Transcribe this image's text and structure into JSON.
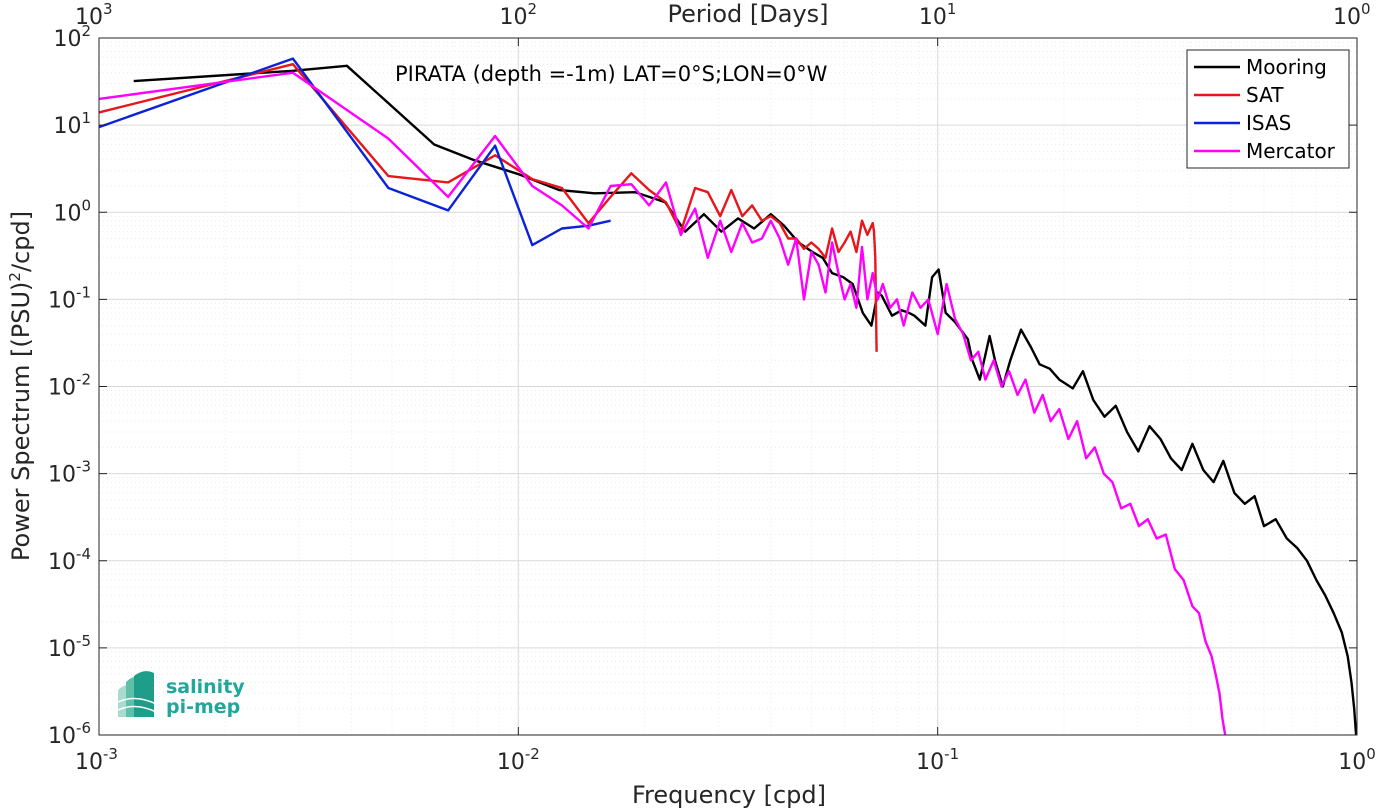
{
  "chart_data": {
    "type": "line",
    "title": "PIRATA (depth =-1m) LAT=0°S;LON=0°W",
    "xlabel": "Frequency [cpd]",
    "ylabel": "Power Spectrum [(PSU)^2/cpd]",
    "top_axis_label": "Period [Days]",
    "x_scale": "log",
    "y_scale": "log",
    "xlim": [
      0.001,
      1
    ],
    "ylim": [
      1e-06,
      100
    ],
    "grid": true,
    "legend_position": "top-right",
    "x_ticks": [
      "10^-3",
      "10^-2",
      "10^-1",
      "10^0"
    ],
    "top_ticks": [
      "10^3",
      "10^2",
      "10^1",
      "10^0"
    ],
    "y_ticks": [
      "10^-6",
      "10^-5",
      "10^-4",
      "10^-3",
      "10^-2",
      "10^-1",
      "10^0",
      "10^1",
      "10^2"
    ],
    "series": [
      {
        "name": "Mooring",
        "color": "#000000",
        "x": [
          0.00121,
          0.0029,
          0.0039,
          0.0063,
          0.0078,
          0.0101,
          0.0125,
          0.0152,
          0.019,
          0.0224,
          0.025,
          0.0277,
          0.0305,
          0.0334,
          0.0365,
          0.04,
          0.043,
          0.0466,
          0.0503,
          0.0532,
          0.056,
          0.0595,
          0.0627,
          0.0663,
          0.0695,
          0.072,
          0.0736,
          0.0778,
          0.082,
          0.0855,
          0.088,
          0.0935,
          0.097,
          0.1005,
          0.1045,
          0.11,
          0.118,
          0.121,
          0.126,
          0.133,
          0.137,
          0.143,
          0.149,
          0.158,
          0.167,
          0.175,
          0.185,
          0.195,
          0.21,
          0.222,
          0.235,
          0.25,
          0.266,
          0.283,
          0.301,
          0.32,
          0.34,
          0.36,
          0.382,
          0.405,
          0.43,
          0.455,
          0.48,
          0.51,
          0.54,
          0.57,
          0.6,
          0.64,
          0.68,
          0.72,
          0.76,
          0.8,
          0.84,
          0.88,
          0.92,
          0.95,
          0.97,
          0.985,
          0.995
        ],
        "y": [
          32,
          42,
          48,
          6,
          4,
          2.7,
          1.8,
          1.65,
          1.7,
          1.3,
          0.6,
          0.95,
          0.6,
          0.85,
          0.65,
          0.95,
          0.7,
          0.45,
          0.35,
          0.3,
          0.2,
          0.18,
          0.15,
          0.07,
          0.05,
          0.12,
          0.11,
          0.065,
          0.075,
          0.07,
          0.065,
          0.05,
          0.18,
          0.22,
          0.07,
          0.055,
          0.035,
          0.02,
          0.012,
          0.038,
          0.02,
          0.01,
          0.02,
          0.045,
          0.028,
          0.018,
          0.016,
          0.012,
          0.0095,
          0.015,
          0.007,
          0.0045,
          0.006,
          0.003,
          0.0018,
          0.0035,
          0.0025,
          0.0015,
          0.0011,
          0.0022,
          0.0011,
          0.0008,
          0.0014,
          0.0006,
          0.00045,
          0.00055,
          0.00025,
          0.0003,
          0.00018,
          0.00014,
          0.0001,
          6e-05,
          4e-05,
          2.5e-05,
          1.5e-05,
          8e-06,
          4e-06,
          2e-06,
          1e-06
        ]
      },
      {
        "name": "SAT",
        "color": "#e8151b",
        "x": [
          0.001,
          0.0029,
          0.0049,
          0.0068,
          0.0088,
          0.0108,
          0.0127,
          0.0147,
          0.0166,
          0.0186,
          0.0205,
          0.0225,
          0.0244,
          0.0264,
          0.0283,
          0.0303,
          0.0322,
          0.0342,
          0.0361,
          0.0381,
          0.04,
          0.042,
          0.044,
          0.046,
          0.048,
          0.05,
          0.052,
          0.054,
          0.056,
          0.058,
          0.06,
          0.062,
          0.064,
          0.066,
          0.068,
          0.07,
          0.0705,
          0.071,
          0.0715
        ],
        "y": [
          14,
          50,
          2.6,
          2.2,
          4.5,
          2.4,
          1.9,
          0.75,
          1.5,
          2.8,
          1.8,
          1.3,
          0.6,
          1.9,
          1.7,
          0.9,
          1.8,
          0.9,
          1.2,
          0.8,
          0.9,
          0.75,
          0.5,
          0.5,
          0.38,
          0.45,
          0.38,
          0.3,
          0.65,
          0.35,
          0.45,
          0.6,
          0.35,
          0.8,
          0.55,
          0.75,
          0.6,
          0.3,
          0.025
        ]
      },
      {
        "name": "ISAS",
        "color": "#0b22d8",
        "x": [
          0.001,
          0.0029,
          0.0049,
          0.0068,
          0.0088,
          0.0108,
          0.0127,
          0.0147,
          0.0166
        ],
        "y": [
          9.5,
          58,
          1.9,
          1.05,
          5.8,
          0.42,
          0.65,
          0.7,
          0.8
        ]
      },
      {
        "name": "Mercator",
        "color": "#ff00ff",
        "x": [
          0.001,
          0.0029,
          0.0049,
          0.0068,
          0.0088,
          0.0108,
          0.0127,
          0.0147,
          0.0166,
          0.0186,
          0.0205,
          0.0225,
          0.0244,
          0.0264,
          0.0283,
          0.0303,
          0.0322,
          0.0342,
          0.0361,
          0.0381,
          0.04,
          0.042,
          0.044,
          0.046,
          0.048,
          0.05,
          0.052,
          0.054,
          0.056,
          0.058,
          0.06,
          0.062,
          0.064,
          0.066,
          0.068,
          0.07,
          0.072,
          0.074,
          0.077,
          0.08,
          0.083,
          0.087,
          0.091,
          0.095,
          0.1,
          0.105,
          0.11,
          0.115,
          0.12,
          0.125,
          0.13,
          0.136,
          0.142,
          0.148,
          0.155,
          0.162,
          0.17,
          0.178,
          0.186,
          0.195,
          0.205,
          0.215,
          0.226,
          0.237,
          0.249,
          0.261,
          0.274,
          0.288,
          0.302,
          0.317,
          0.333,
          0.35,
          0.368,
          0.386,
          0.405,
          0.42,
          0.435,
          0.45,
          0.46,
          0.47,
          0.478,
          0.485
        ],
        "y": [
          20,
          40,
          7,
          1.5,
          7.5,
          2,
          1.2,
          0.65,
          2,
          2.1,
          1.2,
          2.2,
          0.55,
          1.1,
          0.3,
          0.8,
          0.35,
          0.75,
          0.45,
          0.5,
          0.8,
          0.5,
          0.25,
          0.5,
          0.1,
          0.35,
          0.25,
          0.12,
          0.45,
          0.2,
          0.1,
          0.15,
          0.08,
          0.4,
          0.1,
          0.2,
          0.1,
          0.15,
          0.08,
          0.1,
          0.05,
          0.12,
          0.08,
          0.1,
          0.04,
          0.15,
          0.06,
          0.04,
          0.02,
          0.025,
          0.012,
          0.02,
          0.01,
          0.015,
          0.008,
          0.012,
          0.005,
          0.008,
          0.004,
          0.0055,
          0.0025,
          0.004,
          0.0015,
          0.002,
          0.001,
          0.0008,
          0.0004,
          0.00045,
          0.00025,
          0.0003,
          0.00018,
          0.0002,
          8e-05,
          6e-05,
          3e-05,
          2.5e-05,
          1.2e-05,
          8e-06,
          5e-06,
          3e-06,
          1.5e-06,
          1e-06
        ]
      }
    ]
  },
  "logo": {
    "line1": "salinity",
    "line2": "pi-mep"
  },
  "colors": {
    "axis": "#262626",
    "grid_major": "#d9d9d9",
    "grid_minor": "#ececec",
    "logo": "#1fa79b"
  }
}
